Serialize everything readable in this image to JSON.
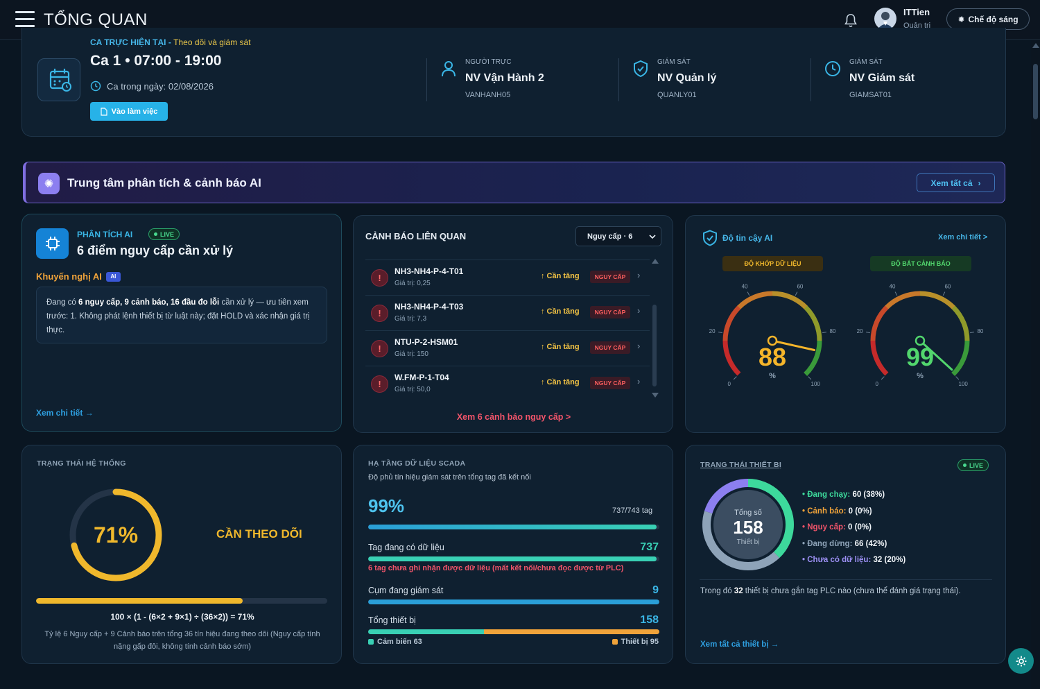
{
  "topbar": {
    "title": "TỔNG QUAN",
    "user_name": "ITTien",
    "user_role": "Quản trị",
    "mode_button": "Chế độ sáng"
  },
  "shift": {
    "label": "CA TRỰC HIỆN TẠI - ",
    "label_sub": "Theo dõi và giám sát",
    "name": "Ca 1 • 07:00 - 19:00",
    "date": "Ca trong ngày: 02/08/2026",
    "work_button": "Vào làm việc",
    "staff": [
      {
        "caption": "NGƯỜI TRỰC",
        "name": "NV Vận Hành 2",
        "code": "VANHANH05",
        "icon": "user-icon"
      },
      {
        "caption": "GIÁM SÁT",
        "name": "NV Quản lý",
        "code": "QUANLY01",
        "icon": "shield-check-icon"
      },
      {
        "caption": "GIÁM SÁT",
        "name": "NV Giám sát",
        "code": "GIAMSAT01",
        "icon": "clock-icon"
      }
    ]
  },
  "ai_banner": {
    "title": "Trung tâm phân tích & cảnh báo AI",
    "view_all": "Xem tất cả"
  },
  "analysis": {
    "label": "PHÂN TÍCH AI",
    "live": "LIVE",
    "title": "6 điểm nguy cấp cần xử lý",
    "rec_label": "Khuyến nghị AI",
    "ai_tag": "AI",
    "rec_part1": "Đang có ",
    "rec_bold1": "6 nguy cấp, 9 cảnh báo, 16 đầu đo lỗi",
    "rec_part2": " cần xử lý — ưu tiên xem trước: 1. Không phát lệnh thiết bị từ luật này; đặt HOLD và xác nhận giá trị thực.",
    "detail_link": "Xem chi tiết →"
  },
  "alerts": {
    "title": "CẢNH BÁO LIÊN QUAN",
    "filter": "Nguy cấp · 6",
    "rows": [
      {
        "name": "NH3-NH4-P-4-T01",
        "value": "Giá trị: 0,25",
        "trend": "↑ Cần tăng",
        "severity": "NGUY CẤP"
      },
      {
        "name": "NH3-NH4-P-4-T03",
        "value": "Giá trị: 7,3",
        "trend": "↑ Cần tăng",
        "severity": "NGUY CẤP"
      },
      {
        "name": "NTU-P-2-HSM01",
        "value": "Giá trị: 150",
        "trend": "↑ Cần tăng",
        "severity": "NGUY CẤP"
      },
      {
        "name": "W.FM-P-1-T04",
        "value": "Giá trị: 50,0",
        "trend": "↑ Cần tăng",
        "severity": "NGUY CẤP"
      }
    ],
    "more_link": "Xem 6 cảnh báo nguy cấp >"
  },
  "trust": {
    "title": "Độ tin cậy AI",
    "link": "Xem chi tiết >",
    "gauges": [
      {
        "label": "ĐỘ KHỚP DỮ LIỆU",
        "value": 88,
        "display": "88",
        "unit": "%",
        "ticks": [
          "0",
          "20",
          "40",
          "60",
          "80",
          "100"
        ],
        "color": "#f5b52a"
      },
      {
        "label": "ĐỘ BẮT CẢNH BÁO",
        "value": 99,
        "display": "99",
        "unit": "%",
        "ticks": [
          "0",
          "20",
          "40",
          "60",
          "80",
          "100"
        ],
        "color": "#52d66d"
      }
    ]
  },
  "system_status": {
    "title": "TRẠNG THÁI HỆ THỐNG",
    "percent": 71,
    "percent_text": "71%",
    "status": "CẦN THEO DÕI",
    "formula": "100 × (1 - (6×2 + 9×1) ÷ (36×2)) = 71%",
    "note": "Tỷ lệ 6 Nguy cấp + 9 Cảnh báo trên tổng 36 tín hiệu đang theo dõi (Nguy cấp tính nặng gấp đôi, không tính cảnh báo sớm)"
  },
  "scada": {
    "title": "HẠ TẦNG DỮ LIỆU SCADA",
    "subtitle": "Độ phủ tín hiệu giám sát trên tổng tag đã kết nối",
    "coverage_text": "99%",
    "coverage": 0.99,
    "tag_count": "737/743 tag",
    "rows": [
      {
        "label": "Tag đang có dữ liệu",
        "value": "737",
        "fill": 0.99
      },
      {
        "label": "Cụm đang giám sát",
        "value": "9",
        "fill": 1.0
      },
      {
        "label": "Tổng thiết bị",
        "value": "158",
        "fill": 1.0
      }
    ],
    "warning": "6 tag chưa ghi nhận được dữ liệu (mất kết nối/chưa đọc được từ PLC)",
    "legend": [
      {
        "label": "Cảm biến 63",
        "value": 63,
        "color": "#39d0b4"
      },
      {
        "label": "Thiết bị 95",
        "value": 95,
        "color": "#f0a33a"
      }
    ]
  },
  "devices": {
    "title": "TRẠNG THÁI THIẾT BỊ",
    "live": "LIVE",
    "total_label": "Tổng số",
    "total": "158",
    "unit": "Thiết bị",
    "items": [
      {
        "label": "Đang chạy:",
        "value": "60 (38%)",
        "count": 60,
        "color": "#3dd99c"
      },
      {
        "label": "Cảnh báo:",
        "value": "0 (0%)",
        "count": 0,
        "color": "#f0a33a"
      },
      {
        "label": "Nguy cấp:",
        "value": "0 (0%)",
        "count": 0,
        "color": "#f0546a"
      },
      {
        "label": "Đang dừng:",
        "value": "66 (42%)",
        "count": 66,
        "color": "#8ea3b8"
      },
      {
        "label": "Chưa có dữ liệu:",
        "value": "32 (20%)",
        "count": 32,
        "color": "#8c7ff0"
      }
    ],
    "note_pre": "Trong đó ",
    "note_bold": "32",
    "note_post": " thiết bị chưa gắn tag PLC nào (chưa thể đánh giá trạng thái).",
    "link": "Xem tất cả thiết bị →"
  }
}
